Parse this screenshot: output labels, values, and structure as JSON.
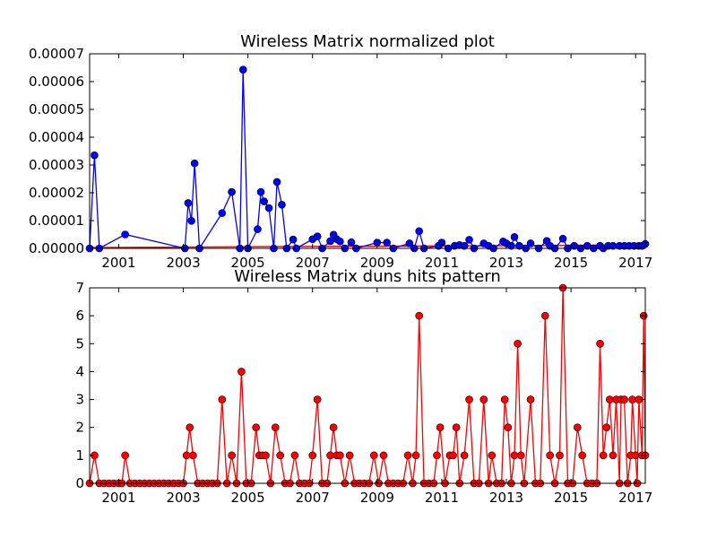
{
  "chart_data": [
    {
      "type": "line",
      "title": "Wireless Matrix normalized plot",
      "xlabel": "",
      "ylabel": "",
      "xlim": [
        2000.1,
        2017.3
      ],
      "ylim": [
        0,
        7e-05
      ],
      "grid": false,
      "x_ticks": [
        2001,
        2003,
        2005,
        2007,
        2009,
        2011,
        2013,
        2015,
        2017
      ],
      "x_tick_labels": [
        "2001",
        "2003",
        "2005",
        "2007",
        "2009",
        "2011",
        "2013",
        "2015",
        "2017"
      ],
      "y_ticks": [
        0,
        1e-05,
        2e-05,
        3e-05,
        4e-05,
        5e-05,
        6e-05,
        7e-05
      ],
      "y_tick_labels": [
        "0.00000",
        "0.00001",
        "0.00002",
        "0.00003",
        "0.00004",
        "0.00005",
        "0.00006",
        "0.00007"
      ],
      "colors": {
        "series": "#0000ff",
        "trend": "#ff0000"
      },
      "series": [
        {
          "marker": "circle",
          "x": [
            2000.1,
            2000.25,
            2000.4,
            2001.2,
            2003.05,
            2003.2,
            2003.3,
            2003.4,
            2004.2,
            2004.5,
            2004.8,
            2004.9,
            2005.3,
            2005.4,
            2005.5,
            2005.6,
            2005.7,
            2005.8,
            2005.9,
            2006.0,
            2006.1,
            2006.4,
            2006.5,
            2007.0,
            2007.1,
            2007.2,
            2007.3,
            2007.55,
            2007.65,
            2007.75,
            2007.85,
            2008.0,
            2008.2,
            2008.35,
            2009.0,
            2009.3,
            2009.5,
            2010.0,
            2010.2,
            2010.3,
            2010.4,
            2010.9,
            2011.0,
            2011.2,
            2011.4,
            2011.6,
            2011.8,
            2012.0,
            2012.3,
            2012.5,
            2012.7,
            2012.9,
            2013.0,
            2013.1,
            2013.3,
            2013.45,
            2013.6,
            2013.8,
            2014.0,
            2014.2,
            2014.3,
            2014.5,
            2014.75,
            2014.9,
            2015.1,
            2015.3,
            2015.5,
            2015.7,
            2015.9,
            2016.0,
            2016.15,
            2016.3,
            2016.5,
            2016.65,
            2016.8,
            2016.95,
            2017.1,
            2017.2,
            2017.3
          ],
          "y": [
            0.0,
            0.0,
            0.0,
            0.0,
            0.0,
            0.0,
            0.0,
            0.0,
            0.0,
            0.0,
            0.0,
            0.0,
            0.0,
            0.0,
            0.0,
            0.0,
            0.0,
            0.0,
            0.0,
            0.0,
            0.0,
            0.0,
            0.0,
            0.0,
            0.0,
            0.0,
            0.0,
            0.0,
            0.0,
            0.0,
            0.0,
            0.0,
            0.0,
            0.0,
            0.0,
            0.0,
            0.0,
            0.0,
            0.0,
            0.0,
            0.0,
            0.0,
            0.0,
            0.0,
            0.0,
            0.0,
            0.0,
            0.0,
            0.0,
            0.0,
            0.0,
            0.0,
            0.0,
            0.0,
            0.0,
            0.0,
            0.0,
            0.0,
            0.0,
            0.0,
            0.0,
            0.0,
            0.0,
            0.0,
            0.0,
            0.0,
            0.0,
            0.0,
            0.0,
            0.0,
            0.0,
            0.0,
            0.0,
            0.0,
            0.0,
            0.0,
            0.0,
            0.0,
            0.0
          ],
          "points": [
            [
              2000.1,
              0.0
            ],
            [
              2000.25,
              3.35e-05
            ],
            [
              2000.4,
              0.0
            ],
            [
              2001.2,
              5e-06
            ],
            [
              2003.05,
              0.0
            ],
            [
              2003.15,
              1.63e-05
            ],
            [
              2003.25,
              9.9e-06
            ],
            [
              2003.35,
              3.06e-05
            ],
            [
              2003.5,
              0.0
            ],
            [
              2004.2,
              1.27e-05
            ],
            [
              2004.5,
              2.03e-05
            ],
            [
              2004.75,
              0.0
            ],
            [
              2004.85,
              6.43e-05
            ],
            [
              2005.0,
              0.0
            ],
            [
              2005.3,
              6.9e-06
            ],
            [
              2005.4,
              2.03e-05
            ],
            [
              2005.5,
              1.69e-05
            ],
            [
              2005.65,
              1.45e-05
            ],
            [
              2005.8,
              0.0
            ],
            [
              2005.9,
              2.39e-05
            ],
            [
              2006.05,
              1.57e-05
            ],
            [
              2006.2,
              0.0
            ],
            [
              2006.4,
              3.2e-06
            ],
            [
              2006.5,
              0.0
            ],
            [
              2007.0,
              3.3e-06
            ],
            [
              2007.15,
              4.3e-06
            ],
            [
              2007.3,
              0.0
            ],
            [
              2007.55,
              2.6e-06
            ],
            [
              2007.65,
              4.9e-06
            ],
            [
              2007.75,
              3.3e-06
            ],
            [
              2007.85,
              2.5e-06
            ],
            [
              2008.0,
              0.0
            ],
            [
              2008.2,
              2.2e-06
            ],
            [
              2008.35,
              0.0
            ],
            [
              2009.0,
              2.1e-06
            ],
            [
              2009.3,
              2.1e-06
            ],
            [
              2009.5,
              0.0
            ],
            [
              2010.0,
              1.8e-06
            ],
            [
              2010.15,
              0.0
            ],
            [
              2010.3,
              6.2e-06
            ],
            [
              2010.45,
              0.0
            ],
            [
              2010.9,
              9e-07
            ],
            [
              2011.0,
              2.1e-06
            ],
            [
              2011.2,
              0.0
            ],
            [
              2011.4,
              9e-07
            ],
            [
              2011.55,
              1.2e-06
            ],
            [
              2011.7,
              9e-07
            ],
            [
              2011.85,
              3.1e-06
            ],
            [
              2012.0,
              0.0
            ],
            [
              2012.3,
              1.8e-06
            ],
            [
              2012.45,
              9e-07
            ],
            [
              2012.6,
              0.0
            ],
            [
              2012.9,
              2.5e-06
            ],
            [
              2013.0,
              1.8e-06
            ],
            [
              2013.15,
              9e-07
            ],
            [
              2013.25,
              4.1e-06
            ],
            [
              2013.4,
              9e-07
            ],
            [
              2013.6,
              0.0
            ],
            [
              2013.75,
              1.8e-06
            ],
            [
              2014.0,
              0.0
            ],
            [
              2014.25,
              2.7e-06
            ],
            [
              2014.35,
              9e-07
            ],
            [
              2014.5,
              0.0
            ],
            [
              2014.75,
              3.5e-06
            ],
            [
              2014.9,
              0.0
            ],
            [
              2015.1,
              9e-07
            ],
            [
              2015.3,
              0.0
            ],
            [
              2015.5,
              9e-07
            ],
            [
              2015.7,
              0.0
            ],
            [
              2015.9,
              9e-07
            ],
            [
              2016.0,
              0.0
            ],
            [
              2016.15,
              9e-07
            ],
            [
              2016.3,
              9e-07
            ],
            [
              2016.5,
              9e-07
            ],
            [
              2016.65,
              9e-07
            ],
            [
              2016.8,
              9e-07
            ],
            [
              2016.95,
              9e-07
            ],
            [
              2017.1,
              9e-07
            ],
            [
              2017.2,
              9e-07
            ],
            [
              2017.3,
              1.6e-06
            ]
          ]
        }
      ],
      "trend_line": {
        "x": [
          2000.1,
          2017.3
        ],
        "y": [
          3e-07,
          1.2e-06
        ]
      }
    },
    {
      "type": "line",
      "title": "Wireless Matrix duns hits pattern",
      "xlabel": "",
      "ylabel": "",
      "xlim": [
        2000.1,
        2017.3
      ],
      "ylim": [
        0,
        7
      ],
      "grid": false,
      "x_ticks": [
        2001,
        2003,
        2005,
        2007,
        2009,
        2011,
        2013,
        2015,
        2017
      ],
      "x_tick_labels": [
        "2001",
        "2003",
        "2005",
        "2007",
        "2009",
        "2011",
        "2013",
        "2015",
        "2017"
      ],
      "y_ticks": [
        0,
        1,
        2,
        3,
        4,
        5,
        6,
        7
      ],
      "y_tick_labels": [
        "0",
        "1",
        "2",
        "3",
        "4",
        "5",
        "6",
        "7"
      ],
      "colors": {
        "series": "#ff0000"
      },
      "series": [
        {
          "marker": "circle",
          "points": [
            [
              2000.1,
              0
            ],
            [
              2000.25,
              1
            ],
            [
              2000.4,
              0
            ],
            [
              2000.55,
              0
            ],
            [
              2000.7,
              0
            ],
            [
              2000.85,
              0
            ],
            [
              2001.0,
              0
            ],
            [
              2001.1,
              0
            ],
            [
              2001.2,
              1
            ],
            [
              2001.35,
              0
            ],
            [
              2001.5,
              0
            ],
            [
              2001.65,
              0
            ],
            [
              2001.8,
              0
            ],
            [
              2001.95,
              0
            ],
            [
              2002.1,
              0
            ],
            [
              2002.25,
              0
            ],
            [
              2002.4,
              0
            ],
            [
              2002.55,
              0
            ],
            [
              2002.7,
              0
            ],
            [
              2002.85,
              0
            ],
            [
              2003.0,
              0
            ],
            [
              2003.1,
              1
            ],
            [
              2003.2,
              2
            ],
            [
              2003.3,
              1
            ],
            [
              2003.45,
              0
            ],
            [
              2003.6,
              0
            ],
            [
              2003.75,
              0
            ],
            [
              2003.9,
              0
            ],
            [
              2004.05,
              0
            ],
            [
              2004.2,
              3
            ],
            [
              2004.35,
              0
            ],
            [
              2004.5,
              1
            ],
            [
              2004.65,
              0
            ],
            [
              2004.8,
              4
            ],
            [
              2004.95,
              0
            ],
            [
              2005.1,
              0
            ],
            [
              2005.25,
              2
            ],
            [
              2005.35,
              1
            ],
            [
              2005.45,
              1
            ],
            [
              2005.55,
              1
            ],
            [
              2005.7,
              0
            ],
            [
              2005.85,
              2
            ],
            [
              2006.0,
              1
            ],
            [
              2006.15,
              0
            ],
            [
              2006.3,
              0
            ],
            [
              2006.45,
              1
            ],
            [
              2006.6,
              0
            ],
            [
              2006.75,
              0
            ],
            [
              2006.9,
              0
            ],
            [
              2007.0,
              1
            ],
            [
              2007.15,
              3
            ],
            [
              2007.3,
              0
            ],
            [
              2007.45,
              0
            ],
            [
              2007.55,
              1
            ],
            [
              2007.65,
              2
            ],
            [
              2007.75,
              1
            ],
            [
              2007.85,
              1
            ],
            [
              2008.0,
              0
            ],
            [
              2008.15,
              1
            ],
            [
              2008.3,
              0
            ],
            [
              2008.45,
              0
            ],
            [
              2008.6,
              0
            ],
            [
              2008.75,
              0
            ],
            [
              2008.9,
              1
            ],
            [
              2009.05,
              0
            ],
            [
              2009.2,
              1
            ],
            [
              2009.35,
              0
            ],
            [
              2009.5,
              0
            ],
            [
              2009.65,
              0
            ],
            [
              2009.8,
              0
            ],
            [
              2009.95,
              1
            ],
            [
              2010.1,
              0
            ],
            [
              2010.2,
              1
            ],
            [
              2010.3,
              6
            ],
            [
              2010.45,
              0
            ],
            [
              2010.6,
              0
            ],
            [
              2010.75,
              0
            ],
            [
              2010.85,
              1
            ],
            [
              2010.95,
              2
            ],
            [
              2011.1,
              0
            ],
            [
              2011.25,
              1
            ],
            [
              2011.35,
              1
            ],
            [
              2011.45,
              2
            ],
            [
              2011.55,
              0
            ],
            [
              2011.7,
              1
            ],
            [
              2011.85,
              3
            ],
            [
              2012.0,
              0
            ],
            [
              2012.15,
              0
            ],
            [
              2012.3,
              3
            ],
            [
              2012.45,
              0
            ],
            [
              2012.55,
              1
            ],
            [
              2012.7,
              0
            ],
            [
              2012.85,
              0
            ],
            [
              2012.95,
              3
            ],
            [
              2013.05,
              2
            ],
            [
              2013.15,
              0
            ],
            [
              2013.25,
              1
            ],
            [
              2013.35,
              5
            ],
            [
              2013.45,
              1
            ],
            [
              2013.55,
              0
            ],
            [
              2013.75,
              3
            ],
            [
              2013.9,
              0
            ],
            [
              2014.05,
              0
            ],
            [
              2014.2,
              6
            ],
            [
              2014.35,
              1
            ],
            [
              2014.5,
              0
            ],
            [
              2014.65,
              1
            ],
            [
              2014.75,
              7
            ],
            [
              2014.9,
              0
            ],
            [
              2015.05,
              0
            ],
            [
              2015.2,
              2
            ],
            [
              2015.35,
              1
            ],
            [
              2015.5,
              0
            ],
            [
              2015.65,
              0
            ],
            [
              2015.8,
              0
            ],
            [
              2015.9,
              5
            ],
            [
              2016.0,
              1
            ],
            [
              2016.1,
              2
            ],
            [
              2016.2,
              3
            ],
            [
              2016.3,
              1
            ],
            [
              2016.4,
              3
            ],
            [
              2016.5,
              0
            ],
            [
              2016.55,
              3
            ],
            [
              2016.65,
              3
            ],
            [
              2016.75,
              0
            ],
            [
              2016.85,
              1
            ],
            [
              2016.9,
              3
            ],
            [
              2017.0,
              1
            ],
            [
              2017.05,
              0
            ],
            [
              2017.1,
              3
            ],
            [
              2017.2,
              1
            ],
            [
              2017.25,
              6
            ],
            [
              2017.3,
              1
            ]
          ]
        }
      ]
    }
  ]
}
